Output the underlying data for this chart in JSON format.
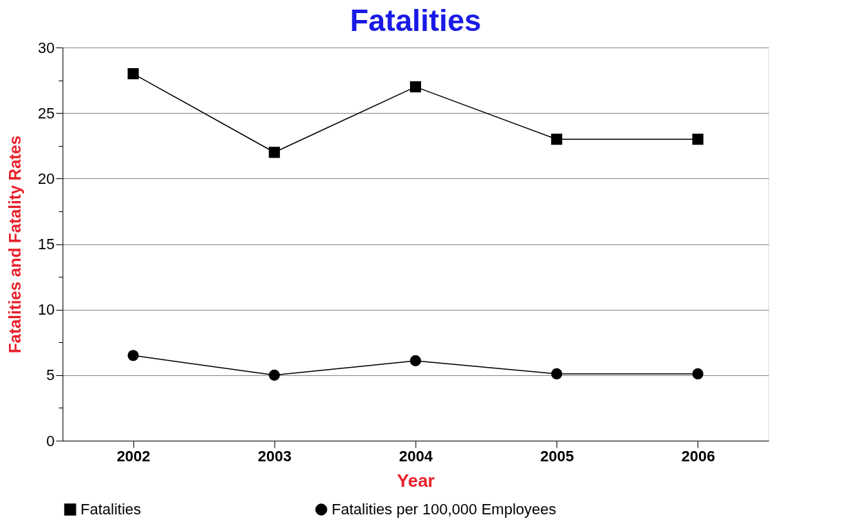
{
  "chart_data": {
    "type": "line",
    "title": "Fatalities",
    "xlabel": "Year",
    "ylabel": "Fatalities and Fatality Rates",
    "categories": [
      "2002",
      "2003",
      "2004",
      "2005",
      "2006"
    ],
    "series": [
      {
        "name": "Fatalities",
        "color": "#000000",
        "marker": "square",
        "values": [
          28,
          22,
          27,
          23,
          23
        ]
      },
      {
        "name": "Fatalities per 100,000 Employees",
        "color": "#000000",
        "marker": "circle",
        "values": [
          6.5,
          5.0,
          6.1,
          5.1,
          5.1
        ]
      }
    ],
    "ylim": [
      0,
      30
    ],
    "yticks": [
      0,
      {
        "value": 2.5,
        "label": null
      },
      5,
      {
        "value": 7.5,
        "label": null
      },
      10,
      {
        "value": 12.5,
        "label": null
      },
      15,
      {
        "value": 17.5,
        "label": null
      },
      20,
      {
        "value": 22.5,
        "label": null
      },
      25,
      {
        "value": 27.5,
        "label": null
      },
      30
    ],
    "grid": "y",
    "legend": "bottom",
    "line_style": "solid"
  }
}
